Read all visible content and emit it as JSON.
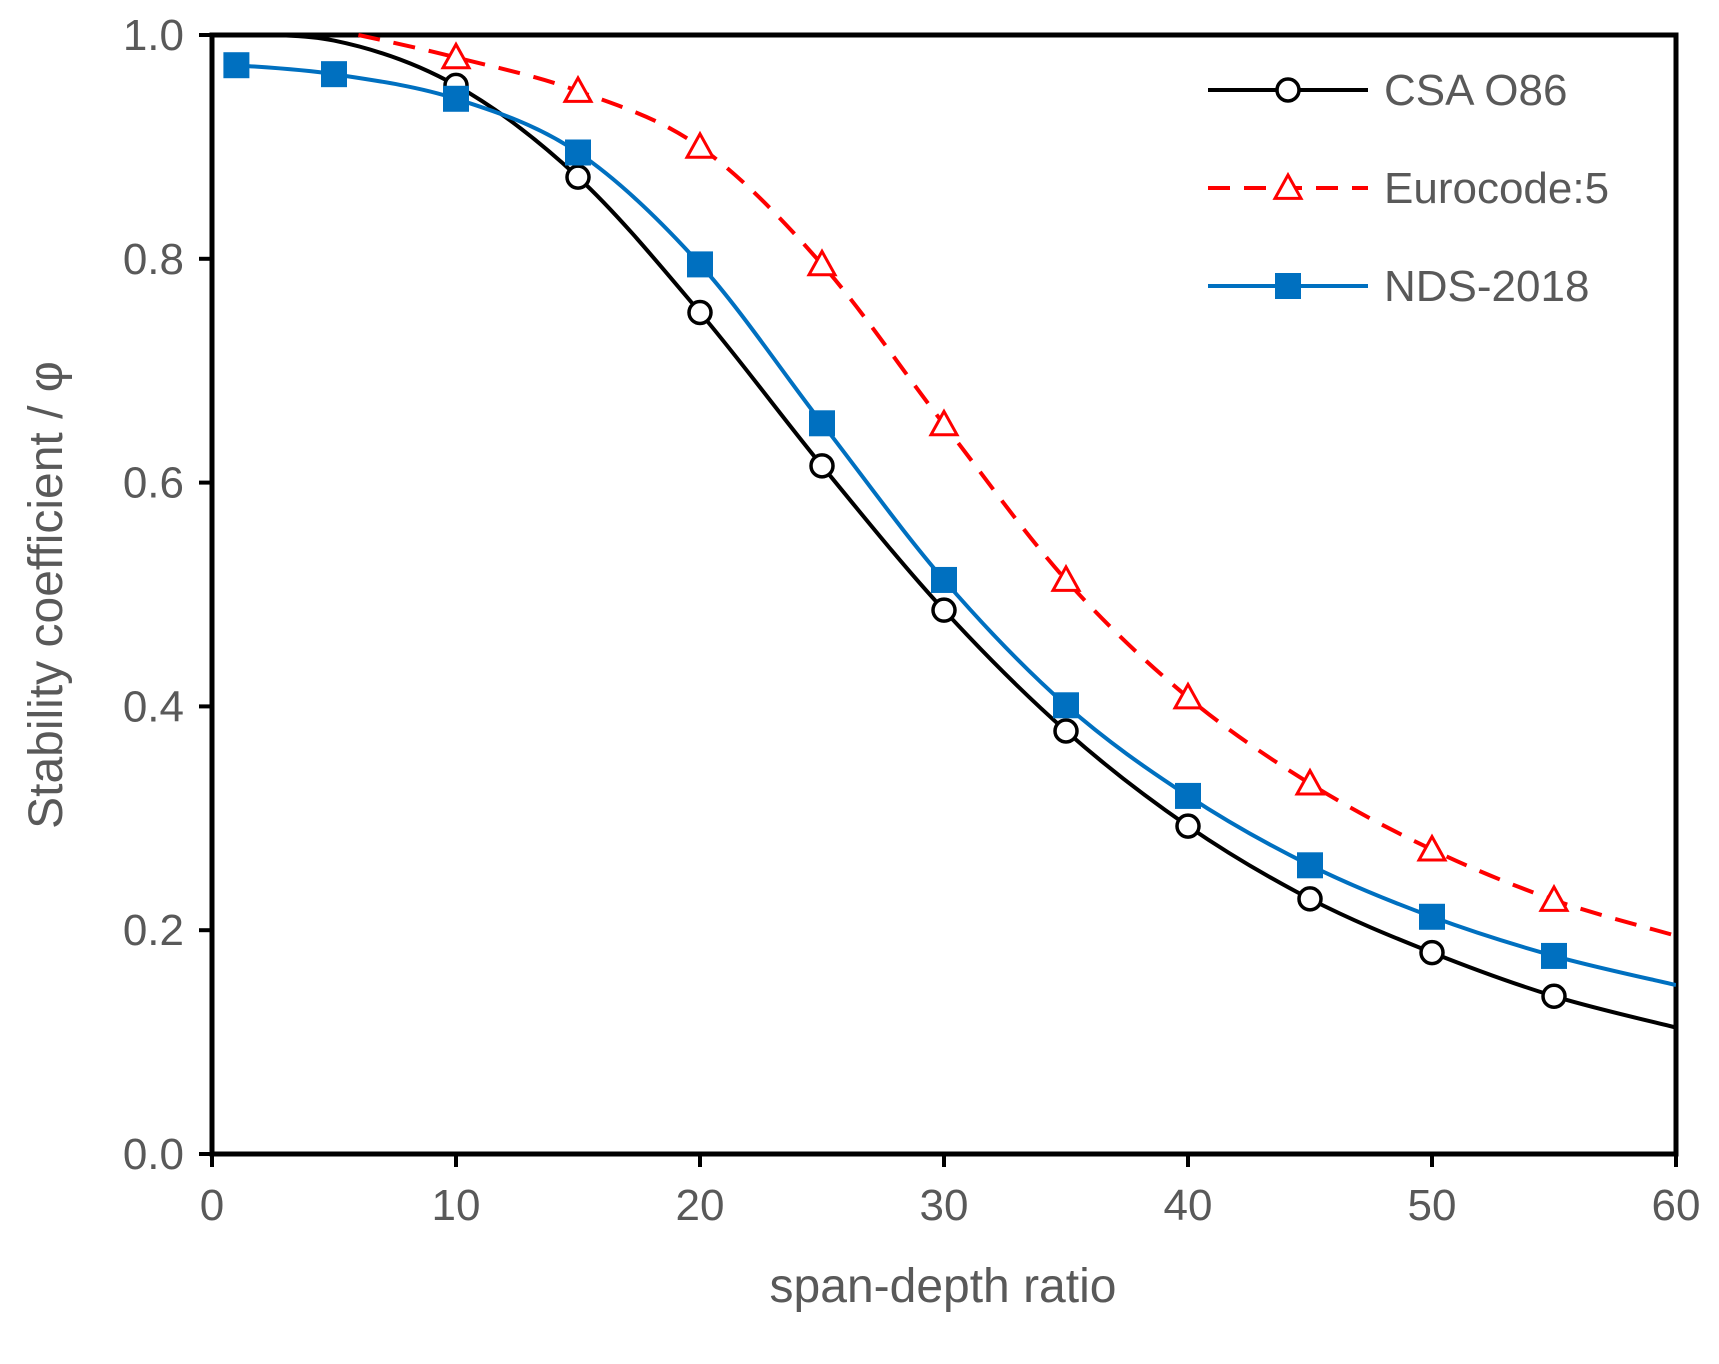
{
  "chart_data": {
    "type": "line",
    "title": "",
    "xlabel": "span-depth ratio",
    "ylabel": "Stability coefficient / φ",
    "xlim": [
      0,
      60
    ],
    "ylim": [
      0.0,
      1.0
    ],
    "x_ticks": [
      "0",
      "10",
      "20",
      "30",
      "40",
      "50",
      "60"
    ],
    "y_ticks": [
      "0.0",
      "0.2",
      "0.4",
      "0.6",
      "0.8",
      "1.0"
    ],
    "grid": false,
    "legend_position": "top-right",
    "series": [
      {
        "name": "CSA O86",
        "color": "#000000",
        "line_style": "solid",
        "marker": "open-circle",
        "markers": {
          "x": [
            10,
            15,
            20,
            25,
            30,
            35,
            40,
            45,
            50,
            55
          ],
          "y": [
            0.955,
            0.873,
            0.752,
            0.615,
            0.486,
            0.378,
            0.293,
            0.228,
            0.18,
            0.141
          ]
        },
        "curve": {
          "x": [
            0,
            5,
            10,
            15,
            20,
            25,
            30,
            35,
            40,
            45,
            50,
            55,
            60
          ],
          "y": [
            1.0,
            0.995,
            0.955,
            0.873,
            0.752,
            0.615,
            0.486,
            0.378,
            0.293,
            0.228,
            0.18,
            0.141,
            0.113
          ]
        }
      },
      {
        "name": "Eurocode:5",
        "color": "#ff0000",
        "line_style": "dashed",
        "marker": "open-triangle",
        "markers": {
          "x": [
            10,
            15,
            20,
            25,
            30,
            35,
            40,
            45,
            50,
            55
          ],
          "y": [
            0.98,
            0.95,
            0.9,
            0.795,
            0.652,
            0.513,
            0.408,
            0.331,
            0.272,
            0.227
          ]
        },
        "curve": {
          "x": [
            6,
            10,
            15,
            20,
            25,
            30,
            35,
            40,
            45,
            50,
            55,
            60
          ],
          "y": [
            1.0,
            0.98,
            0.95,
            0.9,
            0.795,
            0.652,
            0.513,
            0.408,
            0.331,
            0.272,
            0.227,
            0.195
          ]
        }
      },
      {
        "name": "NDS-2018",
        "color": "#0070c0",
        "line_style": "solid",
        "marker": "filled-square",
        "markers": {
          "x": [
            1,
            5,
            10,
            15,
            20,
            25,
            30,
            35,
            40,
            45,
            50,
            55
          ],
          "y": [
            0.973,
            0.965,
            0.943,
            0.895,
            0.795,
            0.653,
            0.513,
            0.401,
            0.32,
            0.258,
            0.212,
            0.177
          ]
        },
        "curve": {
          "x": [
            1,
            5,
            10,
            15,
            20,
            25,
            30,
            35,
            40,
            45,
            50,
            55,
            60
          ],
          "y": [
            0.973,
            0.965,
            0.943,
            0.895,
            0.795,
            0.653,
            0.513,
            0.401,
            0.32,
            0.258,
            0.212,
            0.177,
            0.151
          ]
        }
      }
    ]
  }
}
